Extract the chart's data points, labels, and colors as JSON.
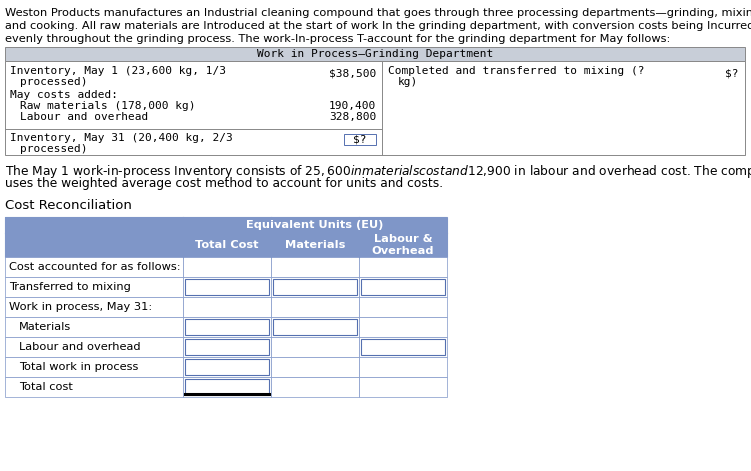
{
  "intro_text_line1": "Weston Products manufactures an Industrial cleaning compound that goes through three processing departments—grinding, mixing,",
  "intro_text_line2": "and cooking. All raw materials are Introduced at the start of work In the grinding department, with conversion costs being Incurred",
  "intro_text_line3": "evenly throughout the grinding process. The work-In-process T-account for the grinding department for May follows:",
  "t_account_title": "Work in Process–Grinding Department",
  "note_text_line1": "The May 1 work-in-process Inventory consists of $25,600 in materials cost and $12,900 in labour and overhead cost. The company",
  "note_text_line2": "uses the weighted average cost method to account for units and costs.",
  "cost_recon_title": "Cost Reconciliation",
  "table_rows": [
    "Cost accounted for as follows:",
    "Transferred to mixing",
    "Work in process, May 31:",
    "Materials",
    "Labour and overhead",
    "Total work in process",
    "Total cost"
  ],
  "header_bg": "#7F96C8",
  "border_color": "#7F96C8",
  "input_border_color": "#5570B0",
  "t_header_bg": "#C8CED8",
  "t_border_color": "#888888",
  "text_color_dark": "#000000",
  "intro_font_size": 8.2,
  "note_font_size": 8.8,
  "cost_title_font_size": 9.5,
  "table_font_size": 8.2,
  "t_font_size": 8.0
}
